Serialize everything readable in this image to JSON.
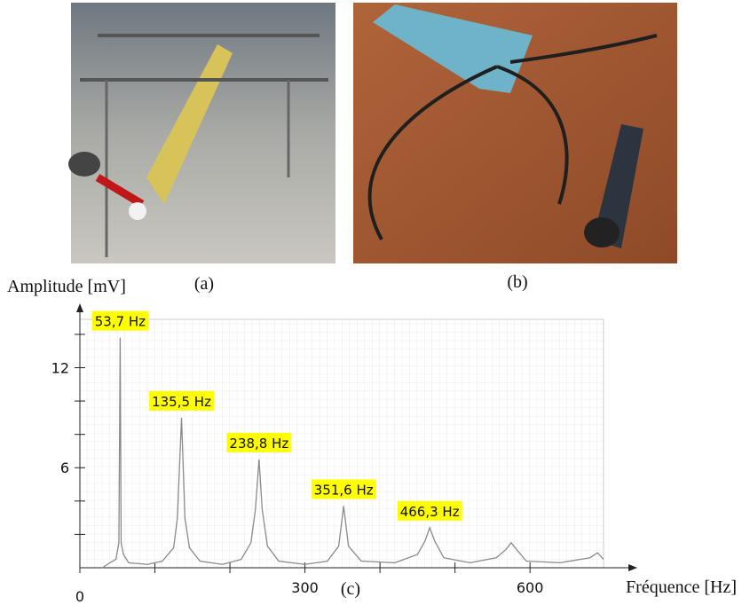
{
  "chart_data": {
    "type": "line",
    "panel_labels": [
      "(a)",
      "(b)",
      "(c)"
    ],
    "ylabel": "Amplitude [mV]",
    "xlabel": "Fréquence [Hz]",
    "xlim": [
      0,
      698
    ],
    "ylim": [
      0,
      14.9
    ],
    "xticks": [
      0,
      300,
      600
    ],
    "xminor": [
      100,
      200,
      400,
      500
    ],
    "yticks": [
      6,
      12
    ],
    "yminor": [
      2,
      4,
      8,
      10,
      14
    ],
    "grid": true,
    "series": [
      {
        "color": "#8a8a8a",
        "x": [
          30,
          40,
          48,
          52,
          53.7,
          55,
          58,
          65,
          90,
          110,
          125,
          130,
          135.5,
          140,
          146,
          160,
          190,
          215,
          228,
          234,
          238.8,
          243,
          250,
          265,
          300,
          330,
          345,
          351.6,
          358,
          375,
          420,
          450,
          460,
          466.3,
          473,
          485,
          520,
          555,
          568,
          575,
          582,
          595,
          640,
          680,
          690,
          698
        ],
        "values": [
          0,
          0.3,
          0.5,
          1.5,
          13.8,
          1.5,
          0.8,
          0.3,
          0.2,
          0.4,
          1.2,
          3,
          9,
          3,
          1.2,
          0.4,
          0.2,
          0.5,
          1.5,
          3.5,
          6.5,
          3.5,
          1.3,
          0.4,
          0.2,
          0.4,
          1.3,
          3.7,
          1.3,
          0.4,
          0.3,
          0.8,
          1.6,
          2.4,
          1.6,
          0.6,
          0.3,
          0.6,
          1.1,
          1.5,
          1.1,
          0.4,
          0.3,
          0.6,
          0.9,
          0.5
        ]
      }
    ],
    "peak_labels": [
      {
        "label": "53,7 Hz",
        "x": 53.7,
        "y": 13.8
      },
      {
        "label": "135,5 Hz",
        "x": 135.5,
        "y": 9
      },
      {
        "label": "238,8 Hz",
        "x": 238.8,
        "y": 6.5
      },
      {
        "label": "351,6 Hz",
        "x": 351.6,
        "y": 3.7
      },
      {
        "label": "466,3 Hz",
        "x": 466.3,
        "y": 2.4
      }
    ],
    "label_color": "#ffff00"
  }
}
